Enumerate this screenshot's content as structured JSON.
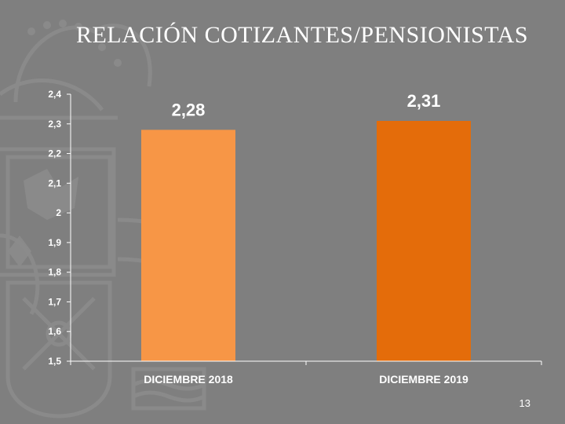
{
  "slide": {
    "title": "RELACIÓN COTIZANTES/PENSIONISTAS",
    "page_number": "13"
  },
  "colors": {
    "background": "#7f7f7f",
    "bar_2018": "#f79646",
    "bar_2019": "#e46c0a",
    "axis": "#ffffff",
    "text": "#ffffff"
  },
  "watermark": {
    "icon": "coat-of-arms-icon"
  },
  "chart_data": {
    "type": "bar",
    "title": "",
    "xlabel": "",
    "ylabel": "",
    "categories": [
      "DICIEMBRE 2018",
      "DICIEMBRE 2019"
    ],
    "values": [
      2.28,
      2.31
    ],
    "data_labels": [
      "2,28",
      "2,31"
    ],
    "ylim": [
      1.5,
      2.4
    ],
    "yticks": [
      1.5,
      1.6,
      1.7,
      1.8,
      1.9,
      2,
      2.1,
      2.2,
      2.3,
      2.4
    ],
    "ytick_labels": [
      "1,5",
      "1,6",
      "1,7",
      "1,8",
      "1,9",
      "2",
      "2,1",
      "2,2",
      "2,3",
      "2,4"
    ],
    "bar_colors": [
      "#f79646",
      "#e46c0a"
    ],
    "grid": false,
    "legend": "none"
  }
}
